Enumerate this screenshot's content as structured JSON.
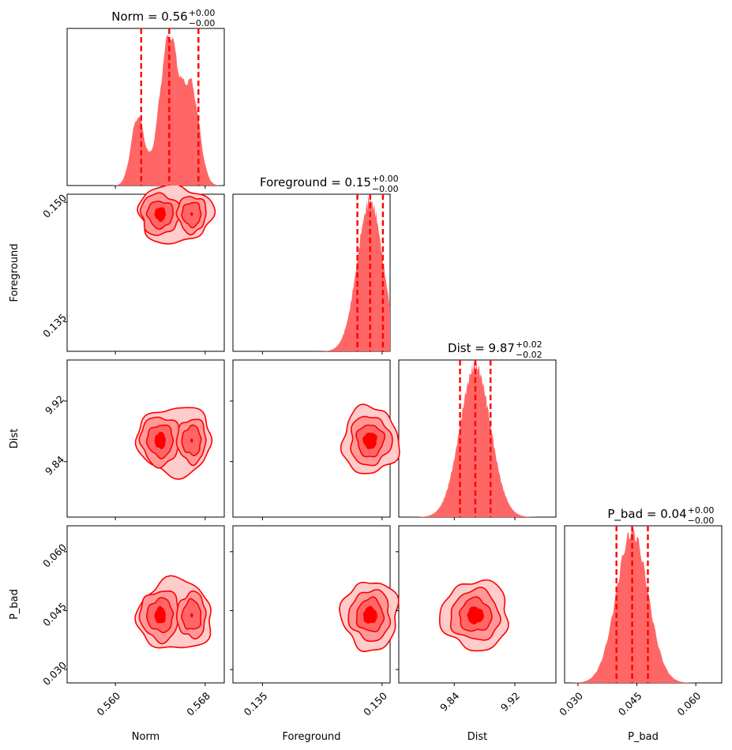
{
  "chart_data": {
    "type": "corner",
    "color": "#ff0000",
    "fill_color": "#ff6666",
    "parameters": [
      {
        "name": "Norm",
        "median": 0.5648,
        "q16": 0.5623,
        "q84": 0.5674,
        "title": {
          "prefix": "Norm = 0.56",
          "upper": "+0.00",
          "lower": "−0.00"
        },
        "xlabel": "Norm",
        "range": [
          0.5557,
          0.5697
        ],
        "ticks": [
          {
            "v": 0.56,
            "label": "0.560"
          },
          {
            "v": 0.568,
            "label": "0.568"
          }
        ]
      },
      {
        "name": "Foreground",
        "median": 0.1485,
        "q16": 0.1469,
        "q84": 0.1501,
        "title": {
          "prefix": "Foreground = 0.15",
          "upper": "+0.00",
          "lower": "−0.00"
        },
        "xlabel": "Foreground",
        "ylabel": "Foreground",
        "range": [
          0.1313,
          0.151
        ],
        "ticks": [
          {
            "v": 0.135,
            "label": "0.135"
          },
          {
            "v": 0.15,
            "label": "0.150"
          }
        ]
      },
      {
        "name": "Dist",
        "median": 9.8678,
        "q16": 9.8476,
        "q84": 9.8879,
        "title": {
          "prefix": "Dist = 9.87",
          "upper": "+0.02",
          "lower": "−0.02"
        },
        "xlabel": "Dist",
        "ylabel": "Dist",
        "range": [
          9.7667,
          9.9742
        ],
        "ticks": [
          {
            "v": 9.84,
            "label": "9.84"
          },
          {
            "v": 9.92,
            "label": "9.92"
          }
        ]
      },
      {
        "name": "P_bad",
        "median": 0.0438,
        "q16": 0.0398,
        "q84": 0.0478,
        "title": {
          "prefix": "P_bad = 0.04",
          "upper": "+0.00",
          "lower": "−0.00"
        },
        "xlabel": "P_bad",
        "ylabel": "P_bad",
        "range": [
          0.0266,
          0.0666
        ],
        "ticks": [
          {
            "v": 0.03,
            "label": "0.030"
          },
          {
            "v": 0.045,
            "label": "0.045"
          },
          {
            "v": 0.06,
            "label": "0.060"
          }
        ]
      }
    ],
    "norm_modes": [
      {
        "mean": 0.562,
        "sd": 0.0006,
        "w": 0.22
      },
      {
        "mean": 0.5648,
        "sd": 0.00085,
        "w": 0.48
      },
      {
        "mean": 0.5668,
        "sd": 0.0007,
        "w": 0.3
      }
    ],
    "contour_levels": 4
  }
}
